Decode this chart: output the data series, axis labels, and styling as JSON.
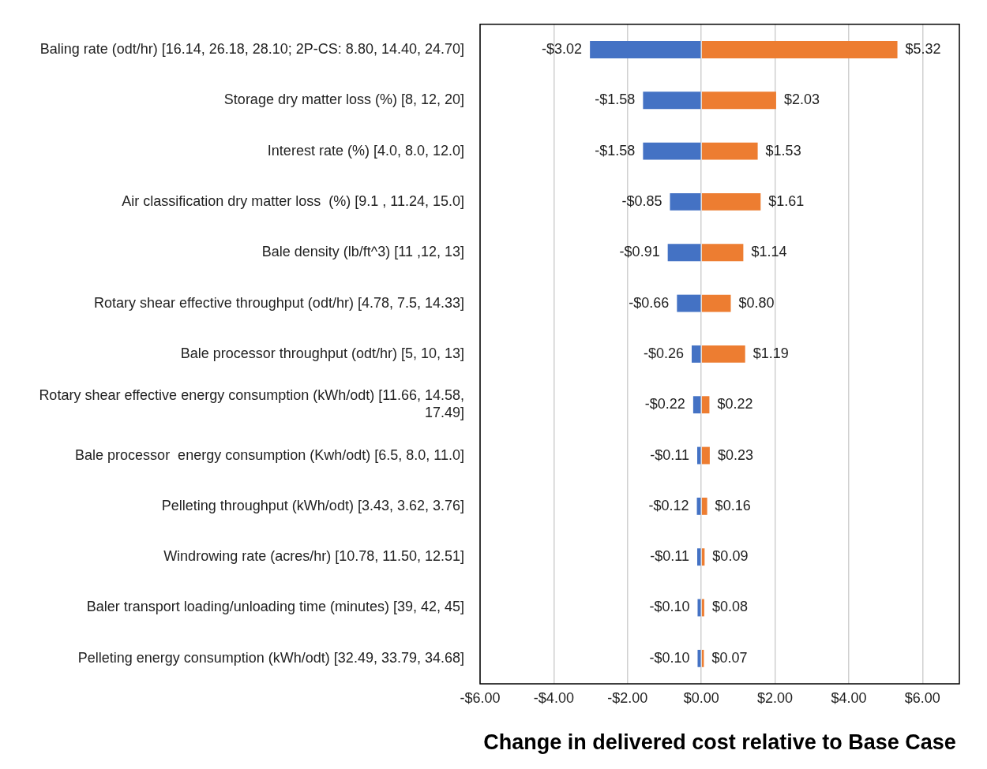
{
  "chart_data": {
    "type": "bar",
    "orientation": "horizontal",
    "stacked": true,
    "xlabel": "Change in delivered cost relative to Base Case",
    "categories": [
      "Baling rate (odt/hr) [16.14, 26.18, 28.10; 2P-CS: 8.80, 14.40, 24.70]",
      "Storage dry matter loss (%) [8, 12, 20]",
      "Interest rate (%) [4.0, 8.0, 12.0]",
      "Air classification dry matter loss  (%) [9.1 , 11.24, 15.0]",
      "Bale density (lb/ft^3) [11 ,12, 13]",
      "Rotary shear effective throughput (odt/hr) [4.78, 7.5, 14.33]",
      "Bale processor throughput (odt/hr) [5, 10, 13]",
      "Rotary shear effective energy consumption (kWh/odt) [11.66, 14.58, 17.49]",
      "Bale processor  energy consumption (Kwh/odt) [6.5, 8.0, 11.0]",
      "Pelleting throughput (kWh/odt) [3.43, 3.62, 3.76]",
      "Windrowing rate (acres/hr) [10.78, 11.50, 12.51]",
      "Baler transport loading/unloading time (minutes) [39, 42, 45]",
      "Pelleting energy consumption (kWh/odt) [32.49, 33.79, 34.68]"
    ],
    "series": [
      {
        "color": "#4472c4",
        "values": [
          -3.02,
          -1.58,
          -1.58,
          -0.85,
          -0.91,
          -0.66,
          -0.26,
          -0.22,
          -0.11,
          -0.12,
          -0.11,
          -0.1,
          -0.1
        ],
        "value_labels": [
          "-$3.02",
          "-$1.58",
          "-$1.58",
          "-$0.85",
          "-$0.91",
          "-$0.66",
          "-$0.26",
          "-$0.22",
          "-$0.11",
          "-$0.12",
          "-$0.11",
          "-$0.10",
          "-$0.10"
        ]
      },
      {
        "color": "#ed7d31",
        "values": [
          5.32,
          2.03,
          1.53,
          1.61,
          1.14,
          0.8,
          1.19,
          0.22,
          0.23,
          0.16,
          0.09,
          0.08,
          0.07
        ],
        "value_labels": [
          "$5.32",
          "$2.03",
          "$1.53",
          "$1.61",
          "$1.14",
          "$0.80",
          "$1.19",
          "$0.22",
          "$0.23",
          "$0.16",
          "$0.09",
          "$0.08",
          "$0.07"
        ]
      }
    ],
    "xlim": [
      -6,
      7
    ],
    "xticks": [
      {
        "value": -6,
        "label": "-$6.00"
      },
      {
        "value": -4,
        "label": "-$4.00"
      },
      {
        "value": -2,
        "label": "-$2.00"
      },
      {
        "value": 0,
        "label": "$0.00"
      },
      {
        "value": 2,
        "label": "$2.00"
      },
      {
        "value": 4,
        "label": "$4.00"
      },
      {
        "value": 6,
        "label": "$6.00"
      }
    ],
    "grid": "x",
    "legend": false
  }
}
